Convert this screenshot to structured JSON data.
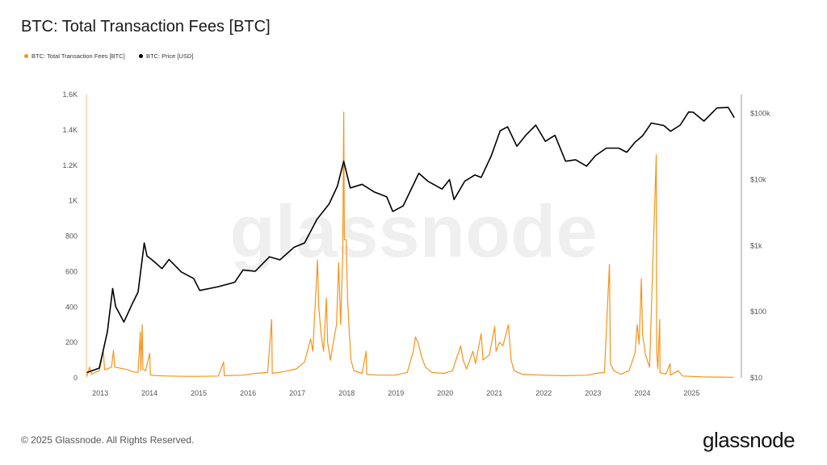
{
  "title": "BTC: Total Transaction Fees [BTC]",
  "footer": "© 2025 Glassnode. All Rights Reserved.",
  "logo": "glassnode",
  "watermark": "glassnode",
  "colors": {
    "fees": "#f7931a",
    "price": "#000000"
  },
  "chart_data": {
    "type": "line",
    "title": "BTC: Total Transaction Fees [BTC]",
    "legend_position": "top-left",
    "grid": false,
    "x_ticks": [
      "2013",
      "2014",
      "2015",
      "2016",
      "2017",
      "2018",
      "2019",
      "2020",
      "2021",
      "2022",
      "2023",
      "2024",
      "2025"
    ],
    "y_left": {
      "ticks": [
        "0",
        "200",
        "400",
        "600",
        "800",
        "1K",
        "1.2K",
        "1.4K",
        "1.6K"
      ],
      "range": [
        0,
        1600
      ]
    },
    "y_right": {
      "scale": "log",
      "ticks": [
        "$10",
        "$100",
        "$1k",
        "$10k",
        "$100k"
      ],
      "range": [
        10,
        195000
      ]
    },
    "series": [
      {
        "name": "BTC: Total Transaction Fees [BTC]",
        "axis": "left",
        "color": "#f7931a",
        "points": [
          [
            "2012-10-01",
            10
          ],
          [
            "2012-10-20",
            60
          ],
          [
            "2012-11-05",
            20
          ],
          [
            "2012-12-01",
            30
          ],
          [
            "2013-01-01",
            40
          ],
          [
            "2013-02-01",
            150
          ],
          [
            "2013-02-10",
            45
          ],
          [
            "2013-04-01",
            60
          ],
          [
            "2013-04-15",
            155
          ],
          [
            "2013-04-25",
            60
          ],
          [
            "2013-06-01",
            55
          ],
          [
            "2013-08-01",
            45
          ],
          [
            "2013-09-01",
            35
          ],
          [
            "2013-10-15",
            30
          ],
          [
            "2013-11-01",
            260
          ],
          [
            "2013-11-05",
            40
          ],
          [
            "2013-11-15",
            300
          ],
          [
            "2013-11-20",
            50
          ],
          [
            "2013-12-10",
            40
          ],
          [
            "2014-01-10",
            140
          ],
          [
            "2014-01-15",
            15
          ],
          [
            "2014-03-01",
            12
          ],
          [
            "2014-06-01",
            10
          ],
          [
            "2014-10-01",
            8
          ],
          [
            "2015-01-01",
            8
          ],
          [
            "2015-06-01",
            10
          ],
          [
            "2015-07-10",
            90
          ],
          [
            "2015-07-15",
            12
          ],
          [
            "2015-12-01",
            15
          ],
          [
            "2016-03-01",
            25
          ],
          [
            "2016-06-01",
            30
          ],
          [
            "2016-07-01",
            330
          ],
          [
            "2016-07-05",
            25
          ],
          [
            "2016-10-01",
            35
          ],
          [
            "2017-01-01",
            50
          ],
          [
            "2017-03-01",
            90
          ],
          [
            "2017-04-15",
            220
          ],
          [
            "2017-05-01",
            150
          ],
          [
            "2017-05-25",
            500
          ],
          [
            "2017-06-05",
            665
          ],
          [
            "2017-06-15",
            400
          ],
          [
            "2017-07-01",
            250
          ],
          [
            "2017-07-20",
            150
          ],
          [
            "2017-08-10",
            450
          ],
          [
            "2017-08-20",
            200
          ],
          [
            "2017-09-10",
            100
          ],
          [
            "2017-10-01",
            200
          ],
          [
            "2017-10-25",
            300
          ],
          [
            "2017-11-10",
            650
          ],
          [
            "2017-11-25",
            300
          ],
          [
            "2017-12-10",
            700
          ],
          [
            "2017-12-17",
            1500
          ],
          [
            "2017-12-22",
            780
          ],
          [
            "2018-01-05",
            780
          ],
          [
            "2018-01-15",
            450
          ],
          [
            "2018-01-25",
            300
          ],
          [
            "2018-02-10",
            100
          ],
          [
            "2018-03-01",
            40
          ],
          [
            "2018-05-01",
            25
          ],
          [
            "2018-06-01",
            150
          ],
          [
            "2018-06-05",
            20
          ],
          [
            "2018-09-01",
            15
          ],
          [
            "2019-01-01",
            15
          ],
          [
            "2019-04-01",
            30
          ],
          [
            "2019-05-15",
            150
          ],
          [
            "2019-06-01",
            230
          ],
          [
            "2019-06-20",
            200
          ],
          [
            "2019-07-15",
            120
          ],
          [
            "2019-08-15",
            60
          ],
          [
            "2019-10-01",
            30
          ],
          [
            "2020-01-01",
            25
          ],
          [
            "2020-03-01",
            40
          ],
          [
            "2020-05-01",
            180
          ],
          [
            "2020-05-20",
            100
          ],
          [
            "2020-06-15",
            50
          ],
          [
            "2020-08-01",
            150
          ],
          [
            "2020-08-20",
            80
          ],
          [
            "2020-10-01",
            250
          ],
          [
            "2020-10-15",
            100
          ],
          [
            "2020-12-01",
            130
          ],
          [
            "2021-01-10",
            290
          ],
          [
            "2021-01-20",
            150
          ],
          [
            "2021-02-15",
            200
          ],
          [
            "2021-03-10",
            180
          ],
          [
            "2021-04-20",
            300
          ],
          [
            "2021-05-10",
            100
          ],
          [
            "2021-06-01",
            40
          ],
          [
            "2021-08-01",
            20
          ],
          [
            "2022-01-01",
            15
          ],
          [
            "2022-06-01",
            12
          ],
          [
            "2022-12-01",
            15
          ],
          [
            "2023-02-01",
            25
          ],
          [
            "2023-04-01",
            30
          ],
          [
            "2023-05-08",
            640
          ],
          [
            "2023-05-15",
            80
          ],
          [
            "2023-06-10",
            40
          ],
          [
            "2023-08-01",
            20
          ],
          [
            "2023-10-01",
            40
          ],
          [
            "2023-11-15",
            140
          ],
          [
            "2023-12-01",
            300
          ],
          [
            "2023-12-15",
            190
          ],
          [
            "2024-01-01",
            560
          ],
          [
            "2024-01-10",
            250
          ],
          [
            "2024-02-01",
            130
          ],
          [
            "2024-03-01",
            60
          ],
          [
            "2024-04-20",
            1260
          ],
          [
            "2024-04-23",
            150
          ],
          [
            "2024-05-01",
            50
          ],
          [
            "2024-05-15",
            330
          ],
          [
            "2024-05-18",
            30
          ],
          [
            "2024-07-01",
            20
          ],
          [
            "2024-08-01",
            80
          ],
          [
            "2024-08-03",
            15
          ],
          [
            "2024-10-01",
            40
          ],
          [
            "2024-11-01",
            10
          ],
          [
            "2025-01-01",
            8
          ],
          [
            "2025-04-01",
            5
          ],
          [
            "2025-07-01",
            4
          ],
          [
            "2025-11-15",
            3
          ]
        ]
      },
      {
        "name": "BTC: Price [USD]",
        "axis": "right",
        "color": "#000000",
        "points": [
          [
            "2012-10-01",
            12
          ],
          [
            "2013-01-01",
            14
          ],
          [
            "2013-03-01",
            50
          ],
          [
            "2013-04-09",
            225
          ],
          [
            "2013-05-01",
            120
          ],
          [
            "2013-07-01",
            70
          ],
          [
            "2013-09-01",
            130
          ],
          [
            "2013-10-15",
            200
          ],
          [
            "2013-11-30",
            1100
          ],
          [
            "2013-12-20",
            700
          ],
          [
            "2014-02-01",
            600
          ],
          [
            "2014-04-10",
            450
          ],
          [
            "2014-06-01",
            620
          ],
          [
            "2014-09-01",
            400
          ],
          [
            "2014-12-01",
            320
          ],
          [
            "2015-01-15",
            210
          ],
          [
            "2015-06-01",
            240
          ],
          [
            "2015-10-01",
            280
          ],
          [
            "2015-12-01",
            430
          ],
          [
            "2016-03-01",
            410
          ],
          [
            "2016-06-15",
            680
          ],
          [
            "2016-09-01",
            610
          ],
          [
            "2016-12-15",
            950
          ],
          [
            "2017-03-01",
            1100
          ],
          [
            "2017-06-01",
            2500
          ],
          [
            "2017-09-01",
            4300
          ],
          [
            "2017-11-01",
            8000
          ],
          [
            "2017-12-17",
            19000
          ],
          [
            "2018-02-05",
            7500
          ],
          [
            "2018-05-01",
            8500
          ],
          [
            "2018-08-01",
            6500
          ],
          [
            "2018-11-01",
            5500
          ],
          [
            "2018-12-15",
            3300
          ],
          [
            "2019-03-01",
            4000
          ],
          [
            "2019-06-26",
            12500
          ],
          [
            "2019-09-01",
            9500
          ],
          [
            "2019-12-15",
            7200
          ],
          [
            "2020-02-10",
            10000
          ],
          [
            "2020-03-13",
            5000
          ],
          [
            "2020-06-01",
            9500
          ],
          [
            "2020-08-15",
            11800
          ],
          [
            "2020-10-01",
            10800
          ],
          [
            "2020-12-15",
            23000
          ],
          [
            "2021-02-20",
            55000
          ],
          [
            "2021-04-14",
            63000
          ],
          [
            "2021-06-22",
            32000
          ],
          [
            "2021-09-01",
            48000
          ],
          [
            "2021-11-10",
            67000
          ],
          [
            "2022-01-20",
            38000
          ],
          [
            "2022-03-30",
            47000
          ],
          [
            "2022-06-18",
            19000
          ],
          [
            "2022-09-01",
            20000
          ],
          [
            "2022-11-21",
            16000
          ],
          [
            "2023-01-25",
            23000
          ],
          [
            "2023-04-15",
            30000
          ],
          [
            "2023-07-15",
            30000
          ],
          [
            "2023-09-15",
            26000
          ],
          [
            "2023-11-15",
            37000
          ],
          [
            "2024-01-10",
            46000
          ],
          [
            "2024-03-14",
            72000
          ],
          [
            "2024-06-15",
            66000
          ],
          [
            "2024-08-05",
            54000
          ],
          [
            "2024-10-15",
            67000
          ],
          [
            "2024-12-17",
            106000
          ],
          [
            "2025-01-20",
            105000
          ],
          [
            "2025-04-08",
            77000
          ],
          [
            "2025-07-14",
            122000
          ],
          [
            "2025-10-06",
            124000
          ],
          [
            "2025-11-20",
            87000
          ]
        ]
      }
    ]
  },
  "legend": [
    {
      "label": "BTC: Total Transaction Fees [BTC]",
      "color": "#f7931a"
    },
    {
      "label": "BTC: Price [USD]",
      "color": "#000000"
    }
  ]
}
